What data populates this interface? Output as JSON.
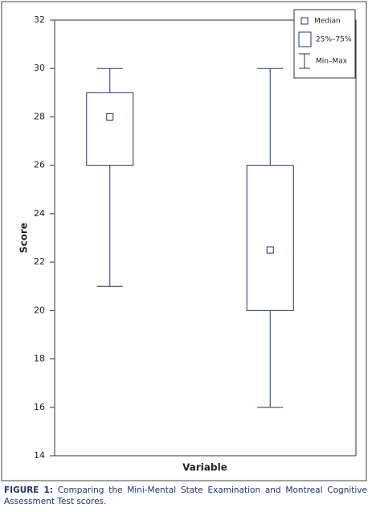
{
  "chart_data": {
    "type": "box",
    "xlabel": "Variable",
    "ylabel": "Score",
    "categories": [
      null,
      null
    ],
    "boxes": [
      {
        "min": 21,
        "q1": 26,
        "median": 28,
        "q3": 29,
        "max": 30
      },
      {
        "min": 16,
        "q1": 20,
        "median": 22.5,
        "q3": 26,
        "max": 30
      }
    ],
    "color": "#1f3566",
    "ylim": [
      14,
      32
    ],
    "yticks": [
      14,
      16,
      18,
      20,
      22,
      24,
      26,
      28,
      30,
      32
    ],
    "legend": {
      "position": "upper right",
      "median": "Median",
      "box": "25%–75%",
      "whisker": "Min–Max"
    }
  },
  "caption": {
    "label": "FIGURE 1:",
    "text": "Comparing the Mini-Mental State Examination and Montreal Cognitive Assessment Test scores."
  }
}
